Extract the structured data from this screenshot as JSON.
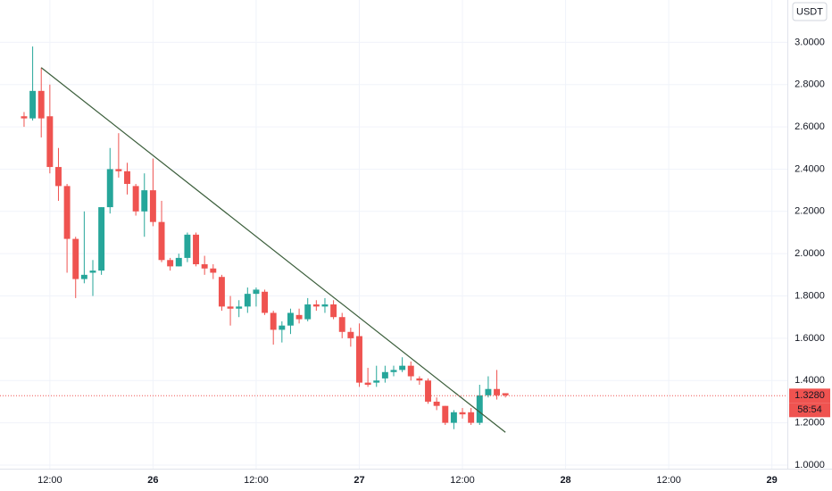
{
  "chart_data": {
    "type": "candlestick",
    "currency": "USDT",
    "up_color": "#26a69a",
    "down_color": "#ef5350",
    "grid": true,
    "x": [
      0,
      1,
      2,
      3,
      4,
      5,
      6,
      7,
      8,
      9,
      10,
      11,
      12,
      13,
      14,
      15,
      16,
      17,
      18,
      19,
      20,
      21,
      22,
      23,
      24,
      25,
      26,
      27,
      28,
      29,
      30,
      31,
      32,
      33,
      34,
      35,
      36,
      37,
      38,
      39,
      40,
      41,
      42,
      43,
      44,
      45,
      46,
      47,
      48,
      49,
      50,
      51,
      52,
      53,
      54,
      55,
      56
    ],
    "open": [
      2.65,
      2.64,
      2.77,
      2.65,
      2.41,
      2.32,
      2.07,
      1.88,
      1.91,
      1.92,
      2.22,
      2.4,
      2.39,
      2.32,
      2.2,
      2.3,
      2.15,
      1.97,
      1.94,
      1.98,
      2.09,
      1.95,
      1.93,
      1.89,
      1.75,
      1.74,
      1.75,
      1.81,
      1.82,
      1.72,
      1.64,
      1.66,
      1.71,
      1.69,
      1.76,
      1.75,
      1.76,
      1.7,
      1.63,
      1.61,
      1.39,
      1.39,
      1.41,
      1.44,
      1.45,
      1.47,
      1.41,
      1.4,
      1.3,
      1.28,
      1.2,
      1.25,
      1.25,
      1.2,
      1.33,
      1.36,
      1.34
    ],
    "high": [
      2.67,
      2.98,
      2.88,
      2.8,
      2.5,
      2.33,
      2.08,
      2.2,
      1.97,
      2.22,
      2.5,
      2.57,
      2.43,
      2.33,
      2.38,
      2.45,
      2.25,
      1.98,
      2.0,
      2.1,
      2.1,
      1.99,
      1.95,
      1.9,
      1.8,
      1.78,
      1.84,
      1.84,
      1.83,
      1.73,
      1.68,
      1.74,
      1.74,
      1.79,
      1.78,
      1.79,
      1.78,
      1.72,
      1.65,
      1.67,
      1.46,
      1.47,
      1.47,
      1.47,
      1.51,
      1.49,
      1.42,
      1.41,
      1.32,
      1.28,
      1.26,
      1.27,
      1.27,
      1.38,
      1.42,
      1.45,
      1.34
    ],
    "low": [
      2.6,
      2.63,
      2.55,
      2.38,
      2.25,
      1.91,
      1.79,
      1.86,
      1.8,
      1.9,
      2.19,
      2.36,
      2.28,
      2.18,
      2.08,
      2.13,
      1.96,
      1.92,
      1.94,
      1.96,
      1.94,
      1.9,
      1.88,
      1.73,
      1.66,
      1.7,
      1.72,
      1.75,
      1.71,
      1.57,
      1.58,
      1.62,
      1.67,
      1.68,
      1.73,
      1.72,
      1.69,
      1.6,
      1.56,
      1.37,
      1.37,
      1.37,
      1.39,
      1.42,
      1.44,
      1.4,
      1.38,
      1.29,
      1.26,
      1.19,
      1.17,
      1.22,
      1.19,
      1.19,
      1.32,
      1.31,
      1.32
    ],
    "close": [
      2.64,
      2.77,
      2.64,
      2.41,
      2.32,
      2.07,
      1.88,
      1.9,
      1.92,
      2.22,
      2.4,
      2.39,
      2.33,
      2.2,
      2.3,
      2.15,
      1.97,
      1.94,
      1.98,
      2.09,
      1.95,
      1.93,
      1.91,
      1.75,
      1.74,
      1.75,
      1.81,
      1.83,
      1.72,
      1.64,
      1.66,
      1.72,
      1.69,
      1.76,
      1.75,
      1.76,
      1.7,
      1.63,
      1.6,
      1.39,
      1.38,
      1.4,
      1.44,
      1.45,
      1.47,
      1.42,
      1.4,
      1.3,
      1.28,
      1.2,
      1.25,
      1.24,
      1.2,
      1.33,
      1.36,
      1.33,
      1.33
    ],
    "trendline": {
      "color": "#3b5e3b",
      "x": [
        2,
        56
      ],
      "y": [
        2.88,
        1.155
      ]
    },
    "last_price": {
      "value": 1.328,
      "label": "1.3280"
    },
    "countdown": "58:54",
    "xlim": [
      -2.8,
      88.8
    ],
    "xticks": [
      {
        "value": 3,
        "label": "12:00"
      },
      {
        "value": 15,
        "label": "26"
      },
      {
        "value": 27,
        "label": "12:00"
      },
      {
        "value": 39,
        "label": "27"
      },
      {
        "value": 51,
        "label": "12:00"
      },
      {
        "value": 63,
        "label": "28"
      },
      {
        "value": 75,
        "label": "12:00"
      },
      {
        "value": 87,
        "label": "29"
      }
    ],
    "ylim": [
      0.983,
      3.2
    ],
    "yticks": [
      {
        "value": 1.0,
        "label": "1.0000"
      },
      {
        "value": 1.2,
        "label": "1.2000"
      },
      {
        "value": 1.4,
        "label": "1.4000"
      },
      {
        "value": 1.6,
        "label": "1.6000"
      },
      {
        "value": 1.8,
        "label": "1.8000"
      },
      {
        "value": 2.0,
        "label": "2.0000"
      },
      {
        "value": 2.2,
        "label": "2.2000"
      },
      {
        "value": 2.4,
        "label": "2.4000"
      },
      {
        "value": 2.6,
        "label": "2.6000"
      },
      {
        "value": 2.8,
        "label": "2.8000"
      },
      {
        "value": 3.0,
        "label": "3.0000"
      }
    ]
  }
}
